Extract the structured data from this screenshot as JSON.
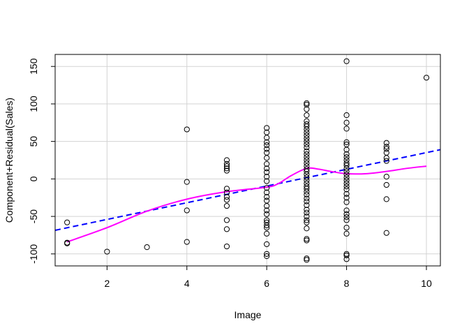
{
  "chart_data": {
    "type": "scatter",
    "xlabel": "Image",
    "ylabel": "Component+Residual(Sales)",
    "xlim": [
      0.7,
      10.35
    ],
    "ylim": [
      -116,
      166
    ],
    "x_ticks": [
      2,
      4,
      6,
      8,
      10
    ],
    "y_ticks": [
      -100,
      -50,
      0,
      50,
      100,
      150
    ],
    "grid": true,
    "points": [
      [
        1,
        -58
      ],
      [
        1,
        -85
      ],
      [
        1,
        -86
      ],
      [
        2,
        -97
      ],
      [
        3,
        -91
      ],
      [
        4,
        66
      ],
      [
        4,
        -4
      ],
      [
        4,
        -42
      ],
      [
        4,
        -84
      ],
      [
        5,
        25
      ],
      [
        5,
        20
      ],
      [
        5,
        17
      ],
      [
        5,
        14
      ],
      [
        5,
        11
      ],
      [
        5,
        -13
      ],
      [
        5,
        -18
      ],
      [
        5,
        -24
      ],
      [
        5,
        -28
      ],
      [
        5,
        -36
      ],
      [
        5,
        -55
      ],
      [
        5,
        -67
      ],
      [
        5,
        -90
      ],
      [
        6,
        68
      ],
      [
        6,
        62
      ],
      [
        6,
        55
      ],
      [
        6,
        49
      ],
      [
        6,
        45
      ],
      [
        6,
        40
      ],
      [
        6,
        35
      ],
      [
        6,
        28
      ],
      [
        6,
        20
      ],
      [
        6,
        14
      ],
      [
        6,
        9
      ],
      [
        6,
        3
      ],
      [
        6,
        -3
      ],
      [
        6,
        -12
      ],
      [
        6,
        -18
      ],
      [
        6,
        -24
      ],
      [
        6,
        -29
      ],
      [
        6,
        -36
      ],
      [
        6,
        -42
      ],
      [
        6,
        -47
      ],
      [
        6,
        -55
      ],
      [
        6,
        -58
      ],
      [
        6,
        -62
      ],
      [
        6,
        -65
      ],
      [
        6,
        -73
      ],
      [
        6,
        -87
      ],
      [
        6,
        -100
      ],
      [
        6,
        -103
      ],
      [
        7,
        101
      ],
      [
        7,
        99
      ],
      [
        7,
        93
      ],
      [
        7,
        85
      ],
      [
        7,
        77
      ],
      [
        7,
        73
      ],
      [
        7,
        70
      ],
      [
        7,
        66
      ],
      [
        7,
        62
      ],
      [
        7,
        58
      ],
      [
        7,
        54
      ],
      [
        7,
        50
      ],
      [
        7,
        46
      ],
      [
        7,
        42
      ],
      [
        7,
        37
      ],
      [
        7,
        33
      ],
      [
        7,
        29
      ],
      [
        7,
        25
      ],
      [
        7,
        21
      ],
      [
        7,
        17
      ],
      [
        7,
        13
      ],
      [
        7,
        10
      ],
      [
        7,
        6
      ],
      [
        7,
        2
      ],
      [
        7,
        -2
      ],
      [
        7,
        -6
      ],
      [
        7,
        -10
      ],
      [
        7,
        -13
      ],
      [
        7,
        -17
      ],
      [
        7,
        -21
      ],
      [
        7,
        -26
      ],
      [
        7,
        -30
      ],
      [
        7,
        -35
      ],
      [
        7,
        -41
      ],
      [
        7,
        -45
      ],
      [
        7,
        -50
      ],
      [
        7,
        -55
      ],
      [
        7,
        -58
      ],
      [
        7,
        -66
      ],
      [
        7,
        -80
      ],
      [
        7,
        -82
      ],
      [
        7,
        -106
      ],
      [
        7,
        -108
      ],
      [
        8,
        157
      ],
      [
        8,
        85
      ],
      [
        8,
        75
      ],
      [
        8,
        67
      ],
      [
        8,
        49
      ],
      [
        8,
        46
      ],
      [
        8,
        39
      ],
      [
        8,
        33
      ],
      [
        8,
        29
      ],
      [
        8,
        25
      ],
      [
        8,
        21
      ],
      [
        8,
        18
      ],
      [
        8,
        14
      ],
      [
        8,
        10
      ],
      [
        8,
        6
      ],
      [
        8,
        2
      ],
      [
        8,
        -2
      ],
      [
        8,
        -6
      ],
      [
        8,
        -10
      ],
      [
        8,
        -14
      ],
      [
        8,
        -20
      ],
      [
        8,
        -25
      ],
      [
        8,
        -31
      ],
      [
        8,
        -42
      ],
      [
        8,
        -47
      ],
      [
        8,
        -51
      ],
      [
        8,
        -55
      ],
      [
        8,
        -65
      ],
      [
        8,
        -73
      ],
      [
        8,
        -100
      ],
      [
        8,
        -102
      ],
      [
        8,
        -107
      ],
      [
        9,
        48
      ],
      [
        9,
        43
      ],
      [
        9,
        40
      ],
      [
        9,
        35
      ],
      [
        9,
        28
      ],
      [
        9,
        24
      ],
      [
        9,
        3
      ],
      [
        9,
        -8
      ],
      [
        9,
        -27
      ],
      [
        9,
        -72
      ],
      [
        10,
        135
      ]
    ],
    "fit_line": {
      "color": "#0000ff",
      "style": "dashed",
      "x": [
        0.7,
        10.35
      ],
      "y": [
        -68.5,
        39
      ]
    },
    "smooth_line": {
      "color": "#ff00ff",
      "x": [
        1,
        2,
        3,
        4,
        5,
        6,
        6.3,
        6.6,
        7,
        7.3,
        7.6,
        8,
        8.5,
        9,
        9.5,
        10
      ],
      "y": [
        -84,
        -65,
        -43,
        -27,
        -17,
        -11,
        -6,
        4,
        14,
        13,
        10,
        7,
        7,
        10,
        14,
        17
      ]
    }
  }
}
